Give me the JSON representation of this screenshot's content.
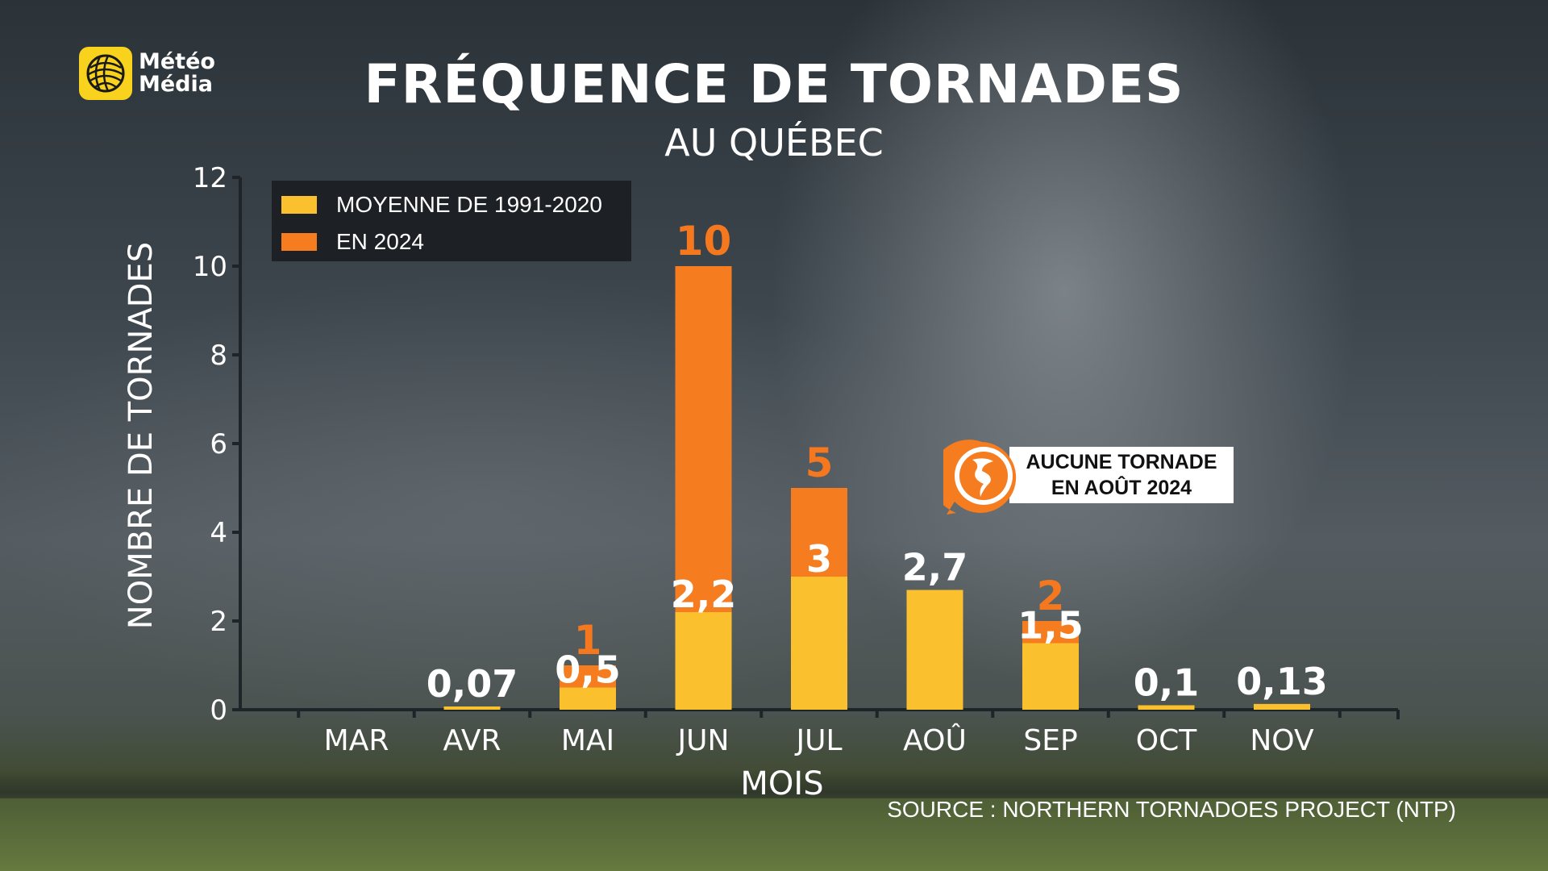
{
  "brand": {
    "line1": "Météo",
    "line2": "Média"
  },
  "title": "FRÉQUENCE DE TORNADES",
  "subtitle": "AU QUÉBEC",
  "legend": {
    "avg_label": "MOYENNE DE 1991-2020",
    "y2024_label": "EN 2024"
  },
  "callout": {
    "line1": "AUCUNE TORNADE",
    "line2": "EN AOÛT 2024"
  },
  "source": "SOURCE : NORTHERN TORNADOES PROJECT (NTP)",
  "colors": {
    "average": "#fbc02d",
    "year2024": "#f57c1f",
    "accent_text": "#f5781f"
  },
  "chart_data": {
    "type": "bar",
    "xlabel": "MOIS",
    "ylabel": "NOMBRE DE TORNADES",
    "ylim": [
      0,
      12
    ],
    "yticks": [
      0,
      2,
      4,
      6,
      8,
      10,
      12
    ],
    "categories": [
      "MAR",
      "AVR",
      "MAI",
      "JUN",
      "JUL",
      "AOÛ",
      "SEP",
      "OCT",
      "NOV"
    ],
    "series": [
      {
        "name": "MOYENNE DE 1991-2020",
        "values": [
          null,
          0.07,
          0.5,
          2.2,
          3,
          2.7,
          1.5,
          0.1,
          0.13
        ],
        "labels": [
          "",
          "0,07",
          "0,5",
          "2,2",
          "3",
          "2,7",
          "1,5",
          "0,1",
          "0,13"
        ]
      },
      {
        "name": "EN 2024",
        "values": [
          null,
          null,
          1,
          10,
          5,
          0,
          2,
          null,
          null
        ],
        "labels": [
          "",
          "",
          "1",
          "10",
          "5",
          "",
          "2",
          "",
          ""
        ]
      }
    ],
    "grid": false,
    "legend_position": "top-left"
  }
}
